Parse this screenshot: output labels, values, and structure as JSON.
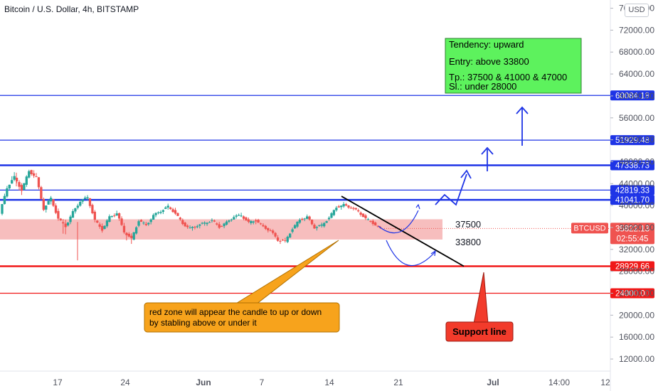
{
  "header": {
    "title": "Bitcoin / U.S. Dollar, 4h, BITSTAMP",
    "currency": "USD"
  },
  "chart_data": {
    "type": "candlestick",
    "symbol": "BTCUSD",
    "y_axis": {
      "ticks": [
        "76000.00",
        "72000.00",
        "68000.00",
        "64000.00",
        "60000.00",
        "56000.00",
        "52000.00",
        "48000.00",
        "44000.00",
        "40000.00",
        "36000.00",
        "32000.00",
        "28000.00",
        "24000.00",
        "20000.00",
        "16000.00",
        "12000.00"
      ],
      "range": [
        9800,
        77500
      ]
    },
    "x_axis": {
      "ticks": [
        "17",
        "24",
        "Jun",
        "7",
        "14",
        "21",
        "Jul",
        "14:00",
        "12"
      ]
    },
    "horizontal_levels": [
      {
        "value": 60084.18,
        "label": "60084.18",
        "color": "#1e34e6",
        "weight": "thin"
      },
      {
        "value": 51929.48,
        "label": "51929.48",
        "color": "#1e34e6",
        "weight": "thin"
      },
      {
        "value": 47338.73,
        "label": "47338.73",
        "color": "#1e34e6",
        "weight": "bold"
      },
      {
        "value": 42819.33,
        "label": "42819.33",
        "color": "#1e34e6",
        "weight": "thin"
      },
      {
        "value": 41041.7,
        "label": "41041.70",
        "color": "#1e34e6",
        "weight": "bold"
      },
      {
        "value": 28929.66,
        "label": "28929.66",
        "color": "#f01818",
        "weight": "bold"
      },
      {
        "value": 24000.0,
        "label": "24000.00",
        "color": "#f01818",
        "weight": "thin"
      }
    ],
    "price_tag": {
      "label": "BTCUSD",
      "value": "35822.13",
      "countdown": "02:55:45",
      "color": "#ef5350"
    },
    "red_zone": {
      "low": 33800,
      "high": 37500,
      "color": "#f6b3b3"
    },
    "zone_labels": {
      "upper": "37500",
      "lower": "33800"
    },
    "info_box": {
      "lines": [
        "Tendency: upward",
        "Entry: above 33800",
        "Tp.: 37500 & 41000 & 47000",
        "Sl.: under 28000"
      ],
      "color": "#5df25d"
    },
    "callout_zone": {
      "text_line1": "red zone will appear the candle to up or down",
      "text_line2": "by stabling above or under it",
      "color": "#f7a31c"
    },
    "callout_support": {
      "text": "Support line",
      "color": "#f23b2b"
    },
    "price_path": [
      [
        38500,
        44400,
        38000,
        43300
      ],
      [
        43300,
        47300,
        42900,
        45200
      ],
      [
        45200,
        46000,
        40500,
        42800
      ],
      [
        42800,
        46800,
        42000,
        46300
      ],
      [
        46300,
        48000,
        44200,
        45100
      ],
      [
        45100,
        45600,
        38600,
        39400
      ],
      [
        39400,
        42000,
        38000,
        41300
      ],
      [
        41300,
        42400,
        36800,
        37600
      ],
      [
        37600,
        39500,
        30500,
        36200
      ],
      [
        36200,
        39600,
        35400,
        38800
      ],
      [
        38800,
        41800,
        37900,
        40800
      ],
      [
        40800,
        42400,
        39900,
        41500
      ],
      [
        41500,
        42100,
        36200,
        37300
      ],
      [
        37300,
        38400,
        34600,
        35600
      ],
      [
        35600,
        38600,
        35100,
        37900
      ],
      [
        37900,
        39800,
        37100,
        38600
      ],
      [
        38600,
        39900,
        34300,
        35200
      ],
      [
        35200,
        36200,
        31000,
        33900
      ],
      [
        33900,
        37800,
        33400,
        37300
      ],
      [
        37300,
        38100,
        35700,
        36400
      ],
      [
        36400,
        38700,
        35400,
        38200
      ],
      [
        38200,
        39600,
        37400,
        39000
      ],
      [
        39000,
        40600,
        38100,
        39800
      ],
      [
        39800,
        40700,
        38200,
        38600
      ],
      [
        38600,
        39100,
        36100,
        36700
      ],
      [
        36700,
        37600,
        35200,
        35800
      ],
      [
        35800,
        36900,
        34400,
        36400
      ],
      [
        36400,
        37200,
        35300,
        36800
      ],
      [
        36800,
        37900,
        35900,
        37300
      ],
      [
        37300,
        38200,
        35700,
        36100
      ],
      [
        36100,
        37300,
        35300,
        36900
      ],
      [
        36900,
        38600,
        36300,
        38000
      ],
      [
        38000,
        39400,
        37300,
        38200
      ],
      [
        38200,
        38800,
        36400,
        36900
      ],
      [
        36900,
        37800,
        35600,
        37300
      ],
      [
        37300,
        37900,
        35800,
        36100
      ],
      [
        36100,
        36700,
        34600,
        35400
      ],
      [
        35400,
        36300,
        33100,
        33700
      ],
      [
        33700,
        34600,
        32400,
        33500
      ],
      [
        33500,
        36400,
        33000,
        35800
      ],
      [
        35800,
        37900,
        35200,
        37400
      ],
      [
        37400,
        38600,
        36700,
        37900
      ],
      [
        37900,
        38300,
        35600,
        36000
      ],
      [
        36000,
        37100,
        35000,
        36400
      ],
      [
        36400,
        38300,
        35900,
        37800
      ],
      [
        37800,
        40300,
        37300,
        39700
      ],
      [
        39700,
        40900,
        38600,
        40100
      ],
      [
        40100,
        40700,
        39200,
        39600
      ],
      [
        39600,
        40200,
        38300,
        38900
      ],
      [
        38900,
        39400,
        36900,
        37600
      ],
      [
        37600,
        38200,
        36200,
        36800
      ],
      [
        36800,
        37100,
        35300,
        35800
      ]
    ]
  }
}
